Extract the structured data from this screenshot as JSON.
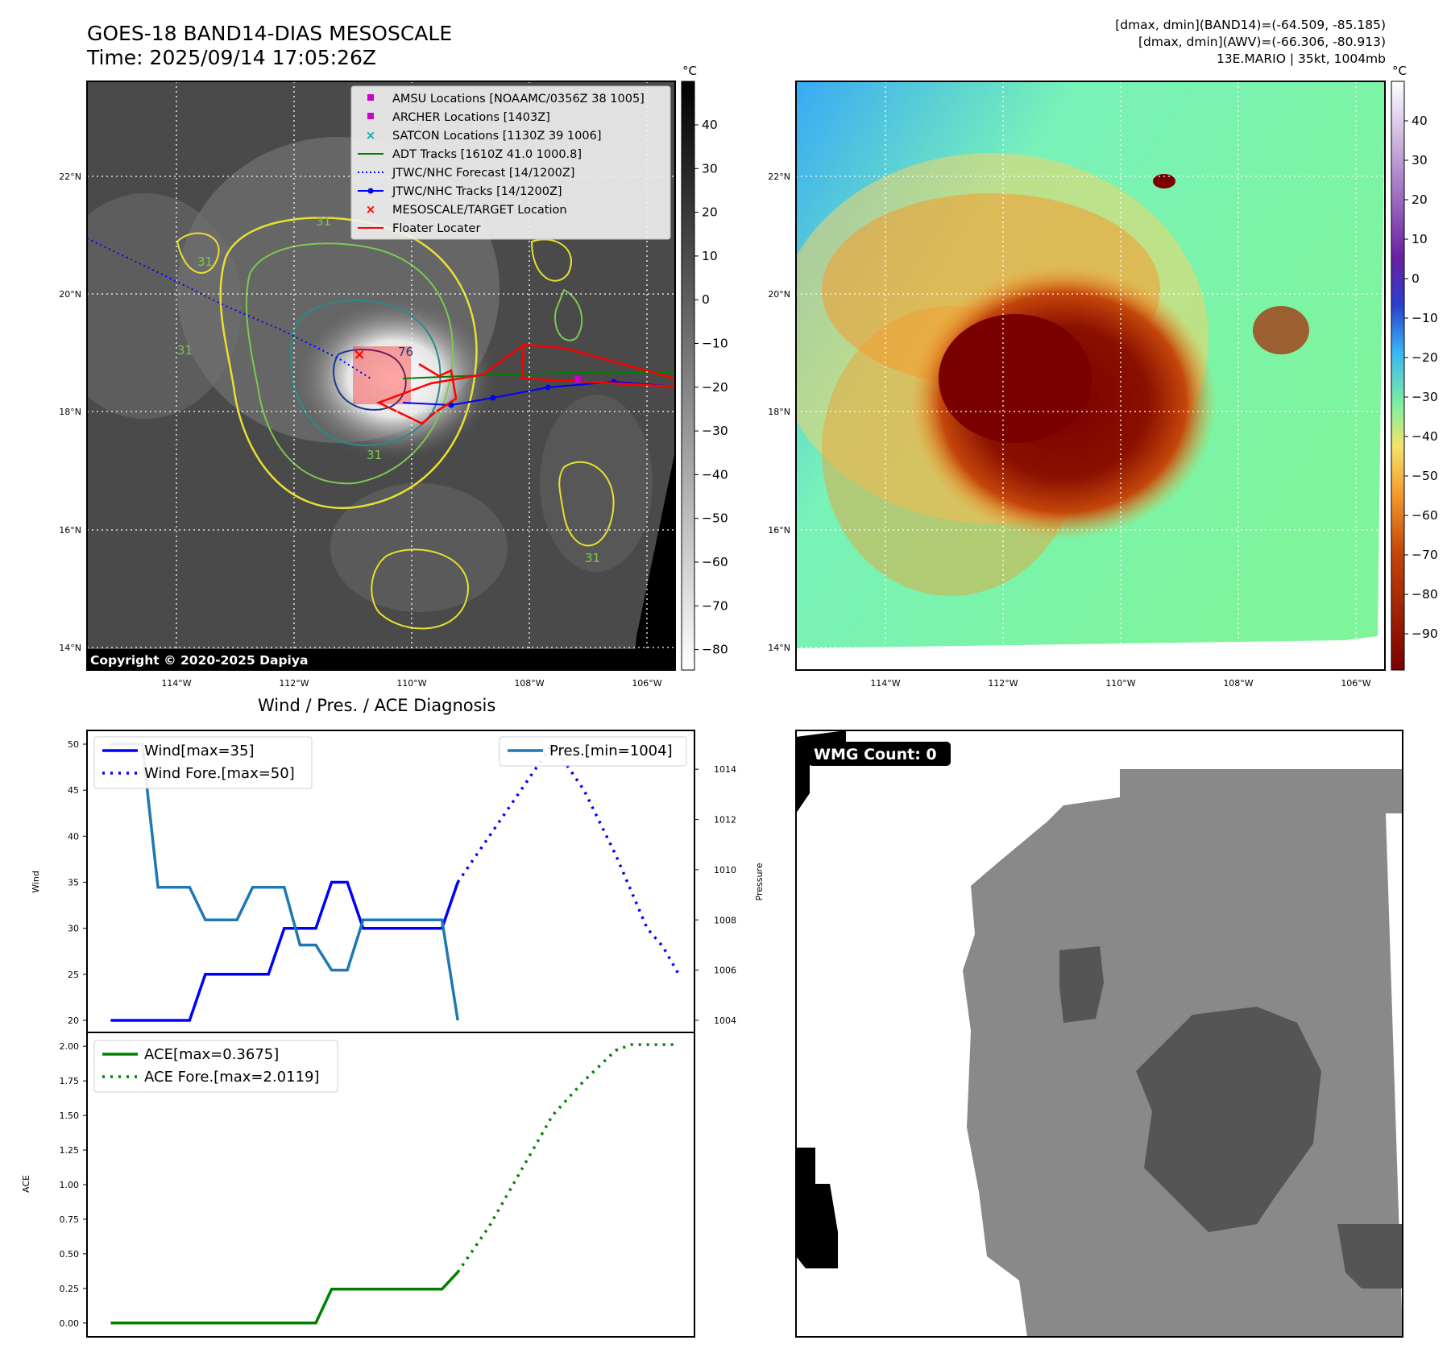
{
  "header": {
    "title_line1": "GOES-18 BAND14-DIAS MESOSCALE",
    "title_line2": "Time: 2025/09/14 17:05:26Z",
    "stat_line1": "[dmax, dmin](BAND14)=(-64.509, -85.185)",
    "stat_line2": "[dmax, dmin](AWV)=(-66.306, -80.913)",
    "stat_line3": "13E.MARIO | 35kt, 1004mb"
  },
  "map": {
    "lat_labels": [
      "22°N",
      "20°N",
      "18°N",
      "16°N",
      "14°N"
    ],
    "lon_labels": [
      "114°W",
      "112°W",
      "110°W",
      "108°W",
      "106°W"
    ],
    "copyright": "Copyright © 2020-2025 Dapiya",
    "unit": "°C",
    "legend": [
      {
        "label": "AMSU Locations [NOAAMC/0356Z 38 1005]",
        "color": "#cc00cc",
        "marker": "square"
      },
      {
        "label": "ARCHER Locations [1403Z]",
        "color": "#cc00cc",
        "marker": "square"
      },
      {
        "label": "SATCON Locations [1130Z 39 1006]",
        "color": "#00b3b3",
        "marker": "x"
      },
      {
        "label": "ADT Tracks [1610Z 41.0 1000.8]",
        "color": "#008000",
        "marker": "line"
      },
      {
        "label": "JTWC/NHC Forecast [14/1200Z]",
        "color": "#0000ff",
        "marker": "dotted"
      },
      {
        "label": "JTWC/NHC Tracks [14/1200Z]",
        "color": "#0000ff",
        "marker": "line-dot"
      },
      {
        "label": "MESOSCALE/TARGET Location",
        "color": "#ff0000",
        "marker": "x"
      },
      {
        "label": "Floater Locater",
        "color": "#ff0000",
        "marker": "line"
      }
    ],
    "contour_labels": [
      "31",
      "31",
      "31",
      "76",
      "31",
      "31"
    ],
    "colorbar_gray_ticks": [
      "40",
      "30",
      "20",
      "10",
      "0",
      "−10",
      "−20",
      "−30",
      "−40",
      "−50",
      "−60",
      "−70",
      "−80"
    ],
    "colorbar_color_ticks": [
      "40",
      "30",
      "20",
      "10",
      "0",
      "−10",
      "−20",
      "−30",
      "−40",
      "−50",
      "−60",
      "−70",
      "−80",
      "−90"
    ]
  },
  "bottom_right": {
    "badge": "WMG Count: 0"
  },
  "chart_title": "Wind / Pres. / ACE Diagnosis",
  "chart_data": [
    {
      "type": "line",
      "title": "",
      "ylabel": "Wind",
      "y2label": "Pressure",
      "ylim": [
        20,
        50
      ],
      "y2lim": [
        1004,
        1015
      ],
      "yticks": [
        "50",
        "45",
        "40",
        "35",
        "30",
        "25",
        "20"
      ],
      "y2ticks": [
        "1014",
        "1012",
        "1010",
        "1008",
        "1006",
        "1004"
      ],
      "series": [
        {
          "name": "Wind[max=35]",
          "axis": "left",
          "style": "solid",
          "color": "#0000ff",
          "points": [
            [
              0,
              20
            ],
            [
              5,
              20
            ],
            [
              6,
              25
            ],
            [
              10,
              25
            ],
            [
              11,
              30
            ],
            [
              13,
              30
            ],
            [
              14,
              35
            ],
            [
              15,
              35
            ],
            [
              16,
              30
            ],
            [
              21,
              30
            ],
            [
              22,
              35
            ]
          ]
        },
        {
          "name": "Wind Fore.[max=50]",
          "axis": "left",
          "style": "dotted",
          "color": "#0000ff",
          "points": [
            [
              22,
              35
            ],
            [
              24,
              40
            ],
            [
              26,
              45
            ],
            [
              28,
              50
            ],
            [
              30,
              45
            ],
            [
              32,
              38
            ],
            [
              34,
              30
            ],
            [
              35,
              28
            ],
            [
              36,
              25
            ]
          ]
        },
        {
          "name": "Pres.[min=1004]",
          "axis": "right",
          "style": "solid",
          "color": "#1f77b4",
          "points": [
            [
              0,
              1015
            ],
            [
              2,
              1015
            ],
            [
              3,
              1009.3
            ],
            [
              5,
              1009.3
            ],
            [
              6,
              1008
            ],
            [
              8,
              1008
            ],
            [
              9,
              1009.3
            ],
            [
              11,
              1009.3
            ],
            [
              12,
              1007
            ],
            [
              13,
              1007
            ],
            [
              14,
              1006
            ],
            [
              15,
              1006
            ],
            [
              16,
              1008
            ],
            [
              21,
              1008
            ],
            [
              22,
              1004
            ]
          ]
        }
      ]
    },
    {
      "type": "line",
      "title": "",
      "ylabel": "ACE",
      "ylim": [
        -0.1,
        2.1
      ],
      "yticks": [
        "2.00",
        "1.75",
        "1.50",
        "1.25",
        "1.00",
        "0.75",
        "0.50",
        "0.25",
        "0.00"
      ],
      "series": [
        {
          "name": "ACE[max=0.3675]",
          "style": "solid",
          "color": "#008000",
          "points": [
            [
              0,
              0
            ],
            [
              13,
              0
            ],
            [
              14,
              0.245
            ],
            [
              21,
              0.245
            ],
            [
              22,
              0.3675
            ]
          ]
        },
        {
          "name": "ACE Fore.[max=2.0119]",
          "style": "dotted",
          "color": "#008000",
          "points": [
            [
              22,
              0.3675
            ],
            [
              24,
              0.7
            ],
            [
              26,
              1.1
            ],
            [
              28,
              1.5
            ],
            [
              30,
              1.75
            ],
            [
              32,
              1.97
            ],
            [
              33,
              2.0119
            ],
            [
              36,
              2.0119
            ]
          ]
        }
      ]
    }
  ]
}
